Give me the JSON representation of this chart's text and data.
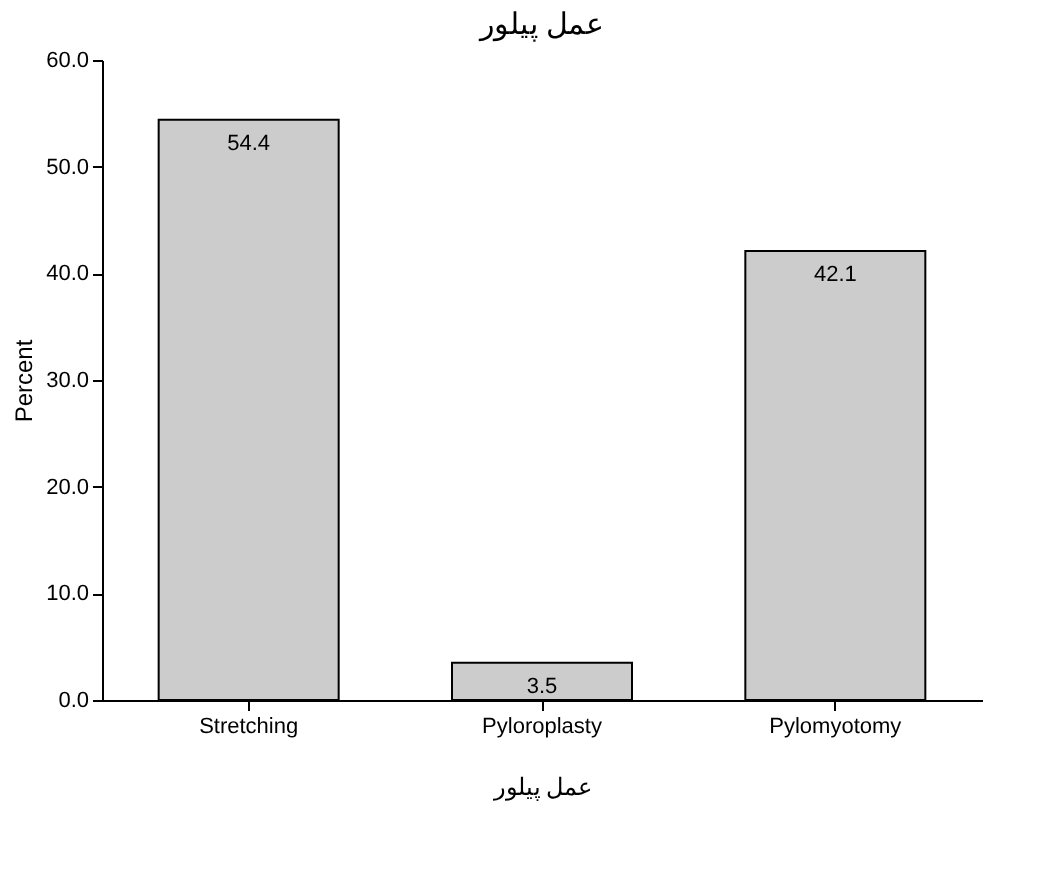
{
  "chart_data": {
    "type": "bar",
    "title": "عمل پیلور",
    "xlabel": "عمل پیلور",
    "ylabel": "Percent",
    "categories": [
      "Stretching",
      "Pyloroplasty",
      "Pylomyotomy"
    ],
    "values": [
      54.4,
      3.5,
      42.1
    ],
    "color": "#cccccc",
    "ylim": [
      0,
      60
    ],
    "yticks": [
      {
        "value": 0,
        "label": "0.0"
      },
      {
        "value": 10,
        "label": "10.0"
      },
      {
        "value": 20,
        "label": "20.0"
      },
      {
        "value": 30,
        "label": "30.0"
      },
      {
        "value": 40,
        "label": "40.0"
      },
      {
        "value": 50,
        "label": "50.0"
      },
      {
        "value": 60,
        "label": "60.0"
      }
    ],
    "data_labels": true,
    "grid": false
  }
}
